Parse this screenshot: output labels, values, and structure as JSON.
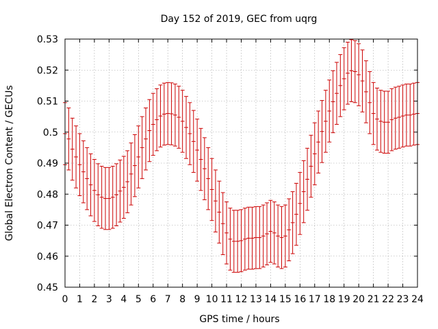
{
  "chart_data": {
    "type": "errorbar",
    "title": "Day 152 of 2019, GEC from uqrg",
    "xlabel": "GPS time / hours",
    "ylabel": "Global Electron Content / GECUs",
    "xlim": [
      0,
      24
    ],
    "ylim": [
      0.45,
      0.53
    ],
    "grid": true,
    "series_color": "#cc0000",
    "x_ticks": [
      "0",
      "1",
      "2",
      "3",
      "4",
      "5",
      "6",
      "7",
      "8",
      "9",
      "10",
      "11",
      "12",
      "13",
      "14",
      "15",
      "16",
      "17",
      "18",
      "19",
      "20",
      "21",
      "22",
      "23",
      "24"
    ],
    "y_ticks": [
      "0.45",
      "0.46",
      "0.47",
      "0.48",
      "0.49",
      "0.5",
      "0.51",
      "0.52",
      "0.53"
    ],
    "x": [
      0,
      0.25,
      0.5,
      0.75,
      1,
      1.25,
      1.5,
      1.75,
      2,
      2.25,
      2.5,
      2.75,
      3,
      3.25,
      3.5,
      3.75,
      4,
      4.25,
      4.5,
      4.75,
      5,
      5.25,
      5.5,
      5.75,
      6,
      6.25,
      6.5,
      6.75,
      7,
      7.25,
      7.5,
      7.75,
      8,
      8.25,
      8.5,
      8.75,
      9,
      9.25,
      9.5,
      9.75,
      10,
      10.25,
      10.5,
      10.75,
      11,
      11.25,
      11.5,
      11.75,
      12,
      12.25,
      12.5,
      12.75,
      13,
      13.25,
      13.5,
      13.75,
      14,
      14.25,
      14.5,
      14.75,
      15,
      15.25,
      15.5,
      15.75,
      16,
      16.25,
      16.5,
      16.75,
      17,
      17.25,
      17.5,
      17.75,
      18,
      18.25,
      18.5,
      18.75,
      19,
      19.25,
      19.5,
      19.75,
      20,
      20.25,
      20.5,
      20.75,
      21,
      21.25,
      21.5,
      21.75,
      22,
      22.25,
      22.5,
      22.75,
      23,
      23.25,
      23.5,
      23.75,
      24
    ],
    "y": [
      0.4995,
      0.4978,
      0.4945,
      0.492,
      0.4895,
      0.4872,
      0.485,
      0.483,
      0.4812,
      0.4798,
      0.479,
      0.4786,
      0.4786,
      0.479,
      0.4798,
      0.481,
      0.4822,
      0.484,
      0.4865,
      0.4892,
      0.492,
      0.495,
      0.4978,
      0.5005,
      0.5025,
      0.504,
      0.5052,
      0.5058,
      0.506,
      0.5059,
      0.5055,
      0.5048,
      0.5035,
      0.5015,
      0.4995,
      0.497,
      0.4942,
      0.4912,
      0.4882,
      0.485,
      0.4815,
      0.4778,
      0.4742,
      0.4705,
      0.4675,
      0.4655,
      0.4648,
      0.4648,
      0.465,
      0.4655,
      0.4658,
      0.4658,
      0.466,
      0.466,
      0.4665,
      0.4672,
      0.468,
      0.4675,
      0.4665,
      0.466,
      0.4665,
      0.4685,
      0.4708,
      0.4735,
      0.477,
      0.4808,
      0.4848,
      0.489,
      0.493,
      0.4968,
      0.5002,
      0.5035,
      0.5068,
      0.5098,
      0.5125,
      0.515,
      0.5172,
      0.519,
      0.5198,
      0.5195,
      0.5185,
      0.5165,
      0.513,
      0.5095,
      0.506,
      0.5042,
      0.5035,
      0.5032,
      0.5032,
      0.504,
      0.5045,
      0.5048,
      0.5052,
      0.5055,
      0.5055,
      0.5058,
      0.506
    ],
    "error": [
      0.01,
      0.01,
      0.01,
      0.01,
      0.01,
      0.01,
      0.01,
      0.01,
      0.01,
      0.01,
      0.01,
      0.01,
      0.01,
      0.01,
      0.01,
      0.01,
      0.01,
      0.01,
      0.01,
      0.01,
      0.01,
      0.01,
      0.01,
      0.01,
      0.01,
      0.01,
      0.01,
      0.01,
      0.01,
      0.01,
      0.01,
      0.01,
      0.01,
      0.01,
      0.01,
      0.01,
      0.01,
      0.01,
      0.01,
      0.01,
      0.01,
      0.01,
      0.01,
      0.01,
      0.01,
      0.01,
      0.01,
      0.01,
      0.01,
      0.01,
      0.01,
      0.01,
      0.01,
      0.01,
      0.01,
      0.01,
      0.01,
      0.01,
      0.01,
      0.01,
      0.01,
      0.01,
      0.01,
      0.01,
      0.01,
      0.01,
      0.01,
      0.01,
      0.01,
      0.01,
      0.01,
      0.01,
      0.01,
      0.01,
      0.01,
      0.01,
      0.01,
      0.01,
      0.01,
      0.01,
      0.01,
      0.01,
      0.01,
      0.01,
      0.01,
      0.01,
      0.01,
      0.01,
      0.01,
      0.01,
      0.01,
      0.01,
      0.01,
      0.01,
      0.01,
      0.01,
      0.01
    ]
  }
}
